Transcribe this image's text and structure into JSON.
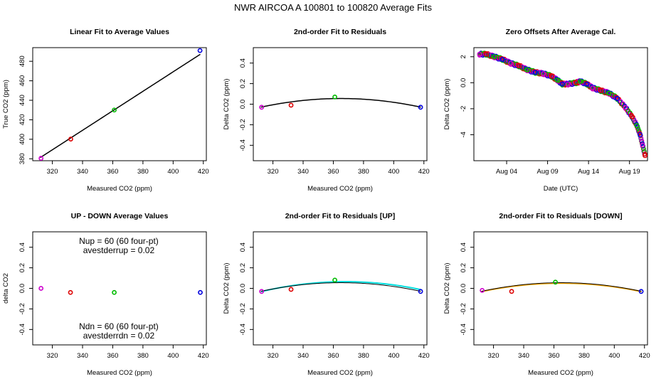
{
  "figure": {
    "title": "NWR   AIRCOA A   100801 to 100820   Average Fits"
  },
  "chart_data": [
    {
      "id": "p1",
      "type": "scatter",
      "title": "Linear Fit to Average Values",
      "xlabel": "Measured CO2 (ppm)",
      "ylabel": "True CO2 (ppm)",
      "xlim": [
        307,
        422
      ],
      "ylim": [
        378,
        494
      ],
      "xticks": [
        320,
        340,
        360,
        380,
        400,
        420
      ],
      "yticks": [
        380,
        400,
        420,
        440,
        460,
        480
      ],
      "points": [
        {
          "x": 312.5,
          "y": 380.5,
          "color": "#cc00cc"
        },
        {
          "x": 332.2,
          "y": 400.2,
          "color": "#dd0000"
        },
        {
          "x": 361.0,
          "y": 430.0,
          "color": "#00bb00"
        },
        {
          "x": 417.8,
          "y": 491.0,
          "color": "#0000dd"
        }
      ],
      "lines": [
        {
          "kind": "poly",
          "coef": [
            69.2,
            1.0
          ],
          "color": "#000000",
          "width": 1.5,
          "x": [
            312,
            418
          ]
        }
      ]
    },
    {
      "id": "p2",
      "type": "scatter",
      "title": "2nd-order Fit to Residuals",
      "xlabel": "Measured CO2 (ppm)",
      "ylabel": "Delta CO2 (ppm)",
      "xlim": [
        307,
        422
      ],
      "ylim": [
        -0.55,
        0.55
      ],
      "xticks": [
        320,
        340,
        360,
        380,
        400,
        420
      ],
      "yticks": [
        -0.4,
        -0.2,
        0.0,
        0.2,
        0.4
      ],
      "points": [
        {
          "x": 312.5,
          "y": -0.03,
          "color": "#cc00cc"
        },
        {
          "x": 332.0,
          "y": -0.01,
          "color": "#dd0000"
        },
        {
          "x": 361.0,
          "y": 0.07,
          "color": "#00bb00"
        },
        {
          "x": 417.8,
          "y": -0.03,
          "color": "#0000dd"
        }
      ],
      "lines": [
        {
          "kind": "quad",
          "xv": 365,
          "yv": 0.055,
          "a": 3e-05,
          "color": "#000000",
          "width": 1.5,
          "x": [
            312,
            418
          ]
        }
      ]
    },
    {
      "id": "p3",
      "type": "scatter",
      "title": "Zero Offsets After Average Cal.",
      "xlabel": "Date (UTC)",
      "ylabel": "Delta CO2 (ppm)",
      "xlim": [
        0,
        21.2
      ],
      "ylim": [
        -6.0,
        2.7
      ],
      "xticks": [
        4,
        9,
        14,
        19
      ],
      "xticklabels": [
        "Aug 04",
        "Aug 09",
        "Aug 14",
        "Aug 19"
      ],
      "yticks": [
        -4,
        -2,
        0,
        2
      ],
      "series": [
        {
          "name": "offsets",
          "points": [
            [
              0.7,
              2.2
            ],
            [
              1.5,
              2.2
            ],
            [
              2.5,
              2.0
            ],
            [
              3.5,
              1.8
            ],
            [
              4.5,
              1.5
            ],
            [
              5.5,
              1.3
            ],
            [
              6.5,
              1.0
            ],
            [
              7.5,
              0.8
            ],
            [
              8.5,
              0.7
            ],
            [
              9.5,
              0.5
            ],
            [
              10.2,
              0.2
            ],
            [
              10.8,
              -0.1
            ],
            [
              11.5,
              -0.1
            ],
            [
              12.5,
              0.0
            ],
            [
              13.0,
              0.1
            ],
            [
              13.8,
              -0.1
            ],
            [
              14.5,
              -0.4
            ],
            [
              15.5,
              -0.6
            ],
            [
              16.5,
              -0.8
            ],
            [
              17.5,
              -1.2
            ],
            [
              18.5,
              -1.9
            ],
            [
              19.3,
              -2.6
            ],
            [
              19.9,
              -3.3
            ],
            [
              20.3,
              -4.0
            ],
            [
              20.6,
              -4.8
            ],
            [
              20.9,
              -5.6
            ]
          ]
        }
      ]
    },
    {
      "id": "p4",
      "type": "scatter",
      "title": "UP - DOWN Average Values",
      "xlabel": "Measured CO2 (ppm)",
      "ylabel": "delta CO2",
      "xlim": [
        307,
        422
      ],
      "ylim": [
        -0.55,
        0.55
      ],
      "xticks": [
        320,
        340,
        360,
        380,
        400,
        420
      ],
      "yticks": [
        -0.4,
        -0.2,
        0.0,
        0.2,
        0.4
      ],
      "points": [
        {
          "x": 312.5,
          "y": 0.0,
          "color": "#cc00cc"
        },
        {
          "x": 332.0,
          "y": -0.04,
          "color": "#dd0000"
        },
        {
          "x": 361.0,
          "y": -0.04,
          "color": "#00bb00"
        },
        {
          "x": 418.0,
          "y": -0.04,
          "color": "#0000dd"
        }
      ],
      "annotations": [
        {
          "text": "Nup = 60 (60 four-pt)",
          "x": 364,
          "y": 0.46
        },
        {
          "text": "avestderrup =  0.02",
          "x": 364,
          "y": 0.37
        },
        {
          "text": "Ndn = 60 (60 four-pt)",
          "x": 364,
          "y": -0.37
        },
        {
          "text": "avestderrdn =  0.02",
          "x": 364,
          "y": -0.46
        }
      ]
    },
    {
      "id": "p5",
      "type": "scatter",
      "title": "2nd-order Fit to Residuals [UP]",
      "xlabel": "Measured CO2 (ppm)",
      "ylabel": "Delta CO2 (ppm)",
      "xlim": [
        307,
        422
      ],
      "ylim": [
        -0.55,
        0.55
      ],
      "xticks": [
        320,
        340,
        360,
        380,
        400,
        420
      ],
      "yticks": [
        -0.4,
        -0.2,
        0.0,
        0.2,
        0.4
      ],
      "points": [
        {
          "x": 312.5,
          "y": -0.03,
          "color": "#cc00cc"
        },
        {
          "x": 332.0,
          "y": -0.01,
          "color": "#dd0000"
        },
        {
          "x": 361.0,
          "y": 0.08,
          "color": "#00bb00"
        },
        {
          "x": 417.8,
          "y": -0.03,
          "color": "#0000dd"
        }
      ],
      "lines": [
        {
          "kind": "quad",
          "xv": 368,
          "yv": 0.065,
          "a": 3.1e-05,
          "color": "#00dddd",
          "width": 2,
          "x": [
            312,
            418
          ]
        },
        {
          "kind": "quad",
          "xv": 365,
          "yv": 0.055,
          "a": 3e-05,
          "color": "#000000",
          "width": 1,
          "x": [
            312,
            418
          ]
        }
      ]
    },
    {
      "id": "p6",
      "type": "scatter",
      "title": "2nd-order Fit to Residuals [DOWN]",
      "xlabel": "Measured CO2 (ppm)",
      "ylabel": "Delta CO2 (ppm)",
      "xlim": [
        307,
        422
      ],
      "ylim": [
        -0.55,
        0.55
      ],
      "xticks": [
        320,
        340,
        360,
        380,
        400,
        420
      ],
      "yticks": [
        -0.4,
        -0.2,
        0.0,
        0.2,
        0.4
      ],
      "points": [
        {
          "x": 312.5,
          "y": -0.02,
          "color": "#cc00cc"
        },
        {
          "x": 332.0,
          "y": -0.03,
          "color": "#dd0000"
        },
        {
          "x": 361.0,
          "y": 0.06,
          "color": "#00bb00"
        },
        {
          "x": 417.8,
          "y": -0.03,
          "color": "#0000dd"
        }
      ],
      "lines": [
        {
          "kind": "quad",
          "xv": 365,
          "yv": 0.05,
          "a": 2.9e-05,
          "color": "#ffaa00",
          "width": 2,
          "x": [
            312,
            418
          ]
        },
        {
          "kind": "quad",
          "xv": 365,
          "yv": 0.055,
          "a": 3e-05,
          "color": "#000000",
          "width": 1,
          "x": [
            312,
            418
          ]
        }
      ]
    }
  ]
}
